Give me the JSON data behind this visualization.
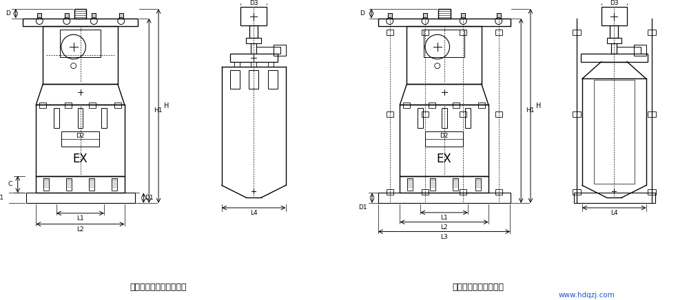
{
  "bg_color": "#ffffff",
  "fig_width": 10.0,
  "fig_height": 4.36,
  "label1": "不具有負荷彈簧等推動器",
  "label2": "具有負荷彈簧等推動器",
  "watermark": "www.hdqzj.com"
}
